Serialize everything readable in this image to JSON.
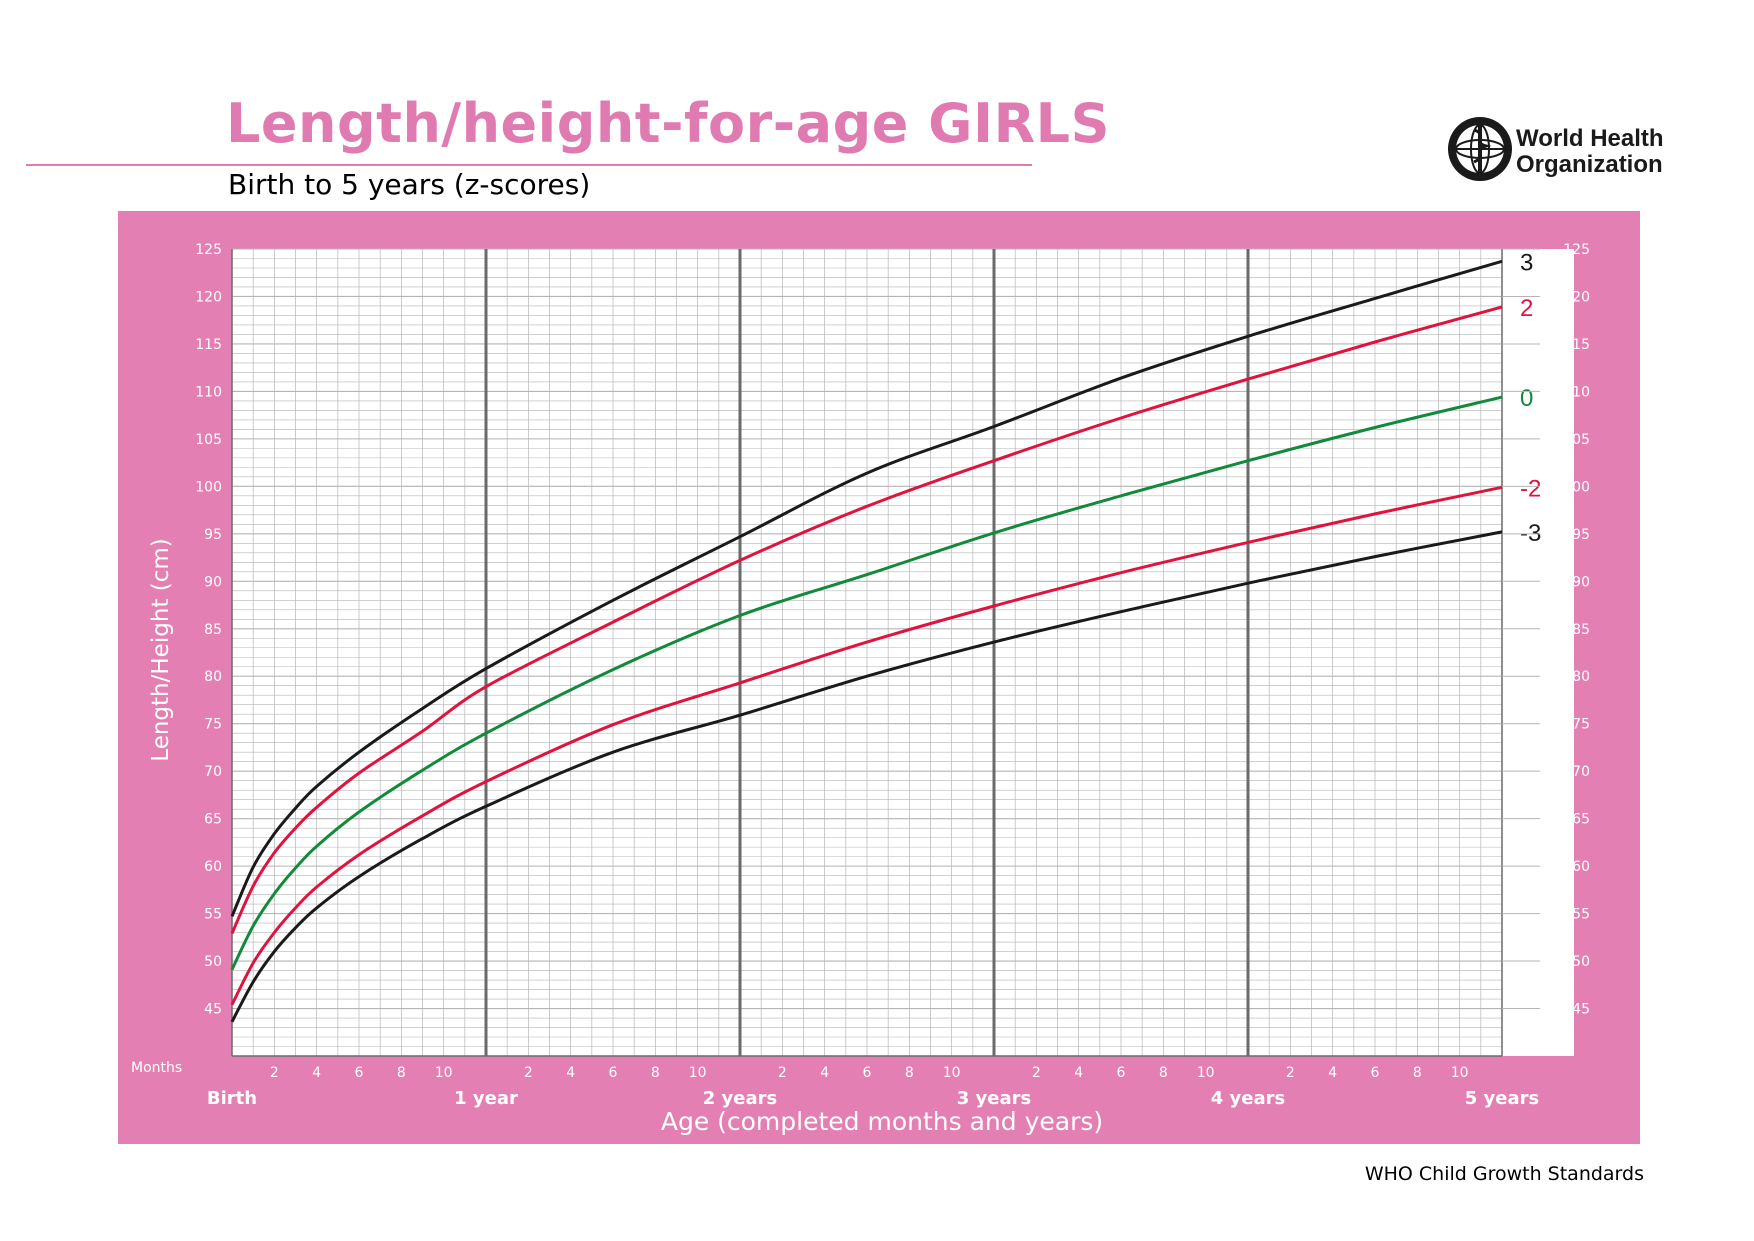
{
  "header": {
    "title": "Length/height-for-age GIRLS",
    "subtitle": "Birth to 5 years (z-scores)"
  },
  "logo": {
    "line1": "World Health",
    "line2": "Organization",
    "icon": "who-emblem-icon"
  },
  "footer": "WHO Child Growth Standards",
  "colors": {
    "panel": "#e47fb3",
    "title": "#e07bb1",
    "z_black": "#1a1a1a",
    "z_red": "#e0133f",
    "z_green": "#118a3a"
  },
  "chart_data": {
    "type": "line",
    "title": "Length/height-for-age GIRLS",
    "subtitle": "Birth to 5 years (z-scores)",
    "xlabel": "Age (completed months and years)",
    "ylabel": "Length/Height (cm)",
    "xlim": [
      0,
      60
    ],
    "ylim": [
      40,
      125
    ],
    "y_ticks": [
      45,
      50,
      55,
      60,
      65,
      70,
      75,
      80,
      85,
      90,
      95,
      100,
      105,
      110,
      115,
      120,
      125
    ],
    "months_label": "Months",
    "month_ticks": [
      "2",
      "4",
      "6",
      "8",
      "10"
    ],
    "year_labels": [
      "Birth",
      "1 year",
      "2 years",
      "3 years",
      "4 years",
      "5 years"
    ],
    "grid": true,
    "x_months": [
      0,
      1,
      2,
      3,
      4,
      6,
      9,
      12,
      18,
      24,
      30,
      36,
      42,
      48,
      54,
      60
    ],
    "series": [
      {
        "name": "3",
        "color": "#1a1a1a",
        "values": [
          54.7,
          59.9,
          63.4,
          66.1,
          68.4,
          72.0,
          76.6,
          80.8,
          88.0,
          94.7,
          101.4,
          106.3,
          111.4,
          115.8,
          119.8,
          123.7
        ]
      },
      {
        "name": "2",
        "color": "#e0133f",
        "values": [
          52.9,
          57.9,
          61.4,
          64.0,
          66.2,
          69.8,
          74.2,
          78.9,
          85.7,
          92.2,
          97.9,
          102.7,
          107.2,
          111.3,
          115.2,
          118.9
        ]
      },
      {
        "name": "0",
        "color": "#118a3a",
        "values": [
          49.1,
          53.7,
          57.1,
          59.8,
          62.1,
          65.7,
          70.1,
          74.0,
          80.7,
          86.4,
          90.7,
          95.1,
          99.0,
          102.7,
          106.2,
          109.4
        ]
      },
      {
        "name": "-2",
        "color": "#e0133f",
        "values": [
          45.4,
          49.8,
          53.0,
          55.6,
          57.8,
          61.2,
          65.3,
          68.9,
          74.9,
          79.3,
          83.6,
          87.4,
          90.9,
          94.1,
          97.1,
          99.9
        ]
      },
      {
        "name": "-3",
        "color": "#1a1a1a",
        "values": [
          43.6,
          47.8,
          51.0,
          53.5,
          55.6,
          58.9,
          62.9,
          66.3,
          72.0,
          75.9,
          80.0,
          83.6,
          86.8,
          89.8,
          92.6,
          95.2
        ]
      }
    ]
  }
}
